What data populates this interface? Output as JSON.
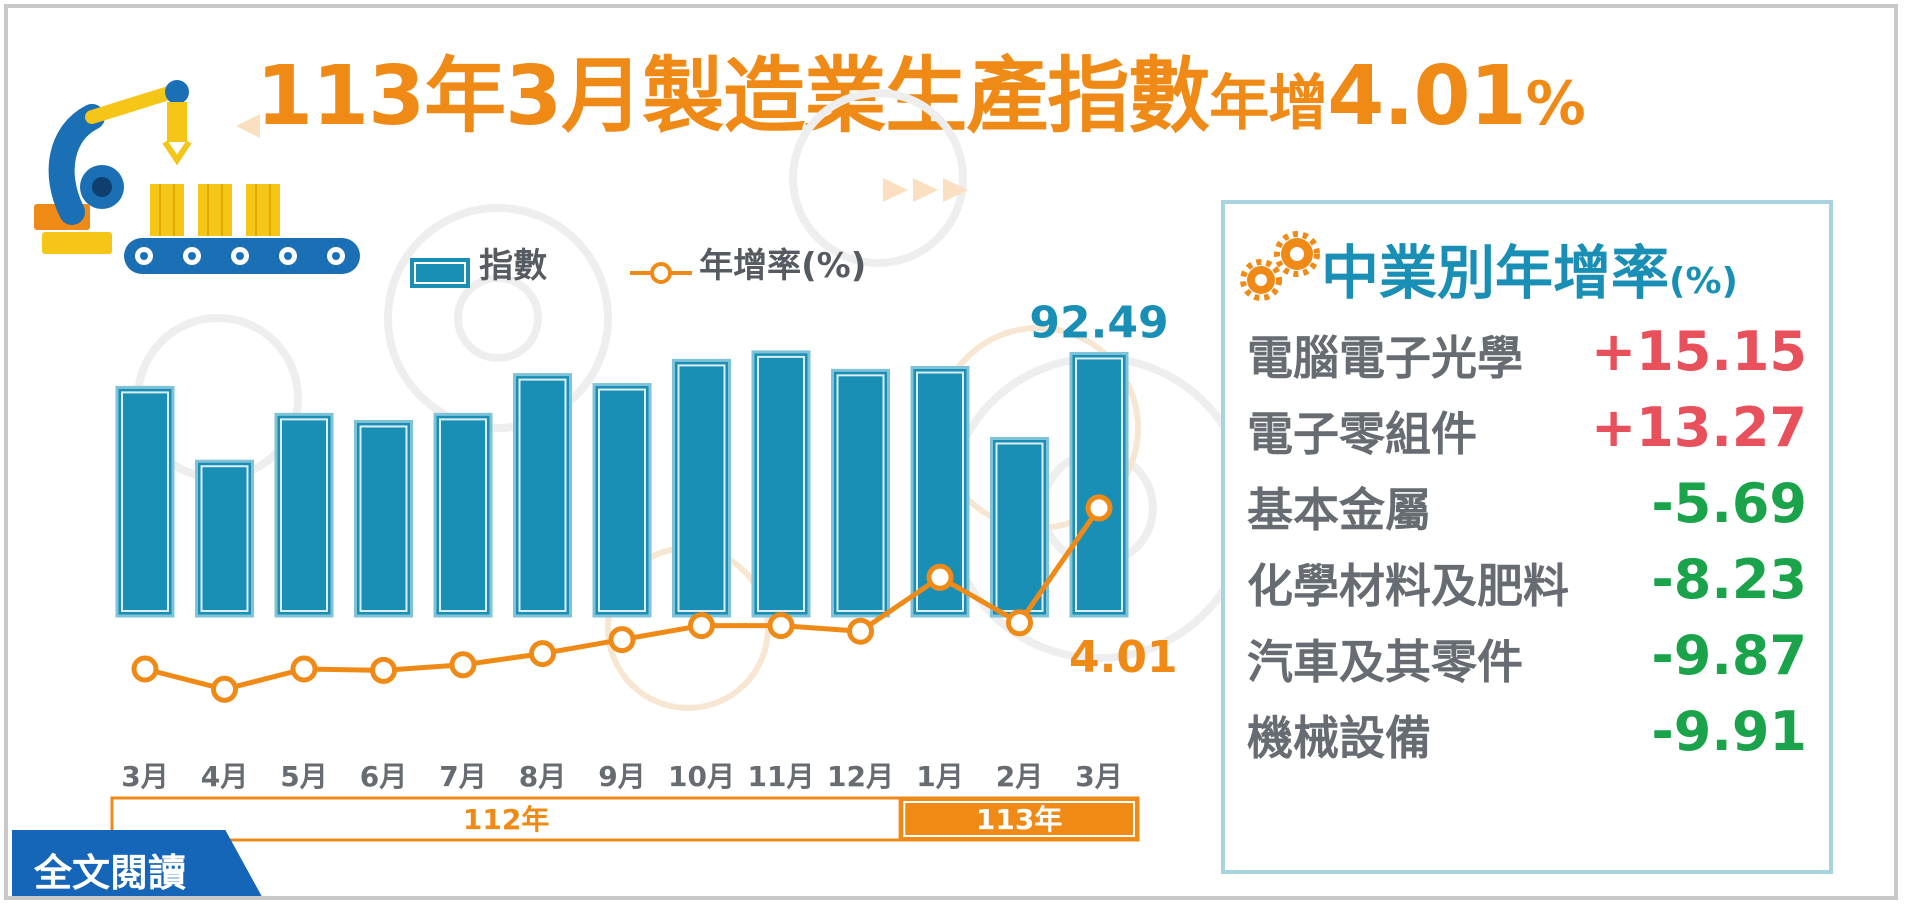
{
  "title": {
    "part1": "113年3月製造業生產指數",
    "part2": "年增",
    "part3": "4.01",
    "part4": "%"
  },
  "legend": {
    "bars_label": "指數",
    "line_label": "年增率(%)"
  },
  "chart_data": {
    "type": "bar",
    "categories": [
      "3月",
      "4月",
      "5月",
      "6月",
      "7月",
      "8月",
      "9月",
      "10月",
      "11月",
      "12月",
      "1月",
      "2月",
      "3月"
    ],
    "series": [
      {
        "name": "指數",
        "values": [
          90.1,
          84.9,
          88.2,
          87.7,
          88.2,
          91.0,
          90.3,
          92.0,
          92.6,
          91.3,
          91.5,
          86.5,
          92.49
        ]
      },
      {
        "name": "年增率(%)",
        "values": [
          -19.0,
          -21.9,
          -19.0,
          -19.2,
          -18.4,
          -16.8,
          -14.8,
          -12.8,
          -12.8,
          -13.6,
          -5.9,
          -12.4,
          4.01
        ]
      }
    ],
    "year_groups": [
      {
        "label": "112年",
        "span": 10
      },
      {
        "label": "113年",
        "span": 3
      }
    ],
    "data_labels": {
      "last_index": "92.49",
      "last_growth": "4.01"
    },
    "colors": {
      "bar": "#1a8fb5",
      "line": "#f08a17"
    }
  },
  "panel": {
    "title": "中業別年增率",
    "unit": "(%)",
    "rows": [
      {
        "name": "電腦電子光學",
        "value": "+15.15",
        "color": "#e8505b"
      },
      {
        "name": "電子零組件",
        "value": "+13.27",
        "color": "#e8505b"
      },
      {
        "name": "基本金屬",
        "value": "-5.69",
        "color": "#1aa34a"
      },
      {
        "name": "化學材料及肥料",
        "value": "-8.23",
        "color": "#1aa34a"
      },
      {
        "name": "汽車及其零件",
        "value": "-9.87",
        "color": "#1aa34a"
      },
      {
        "name": "機械設備",
        "value": "-9.91",
        "color": "#1aa34a"
      }
    ]
  },
  "read_more": {
    "label": "全文閱讀"
  },
  "colors": {
    "accent": "#f08a17",
    "primary": "#1a8fb5",
    "positive": "#e8505b",
    "negative": "#1aa34a"
  }
}
